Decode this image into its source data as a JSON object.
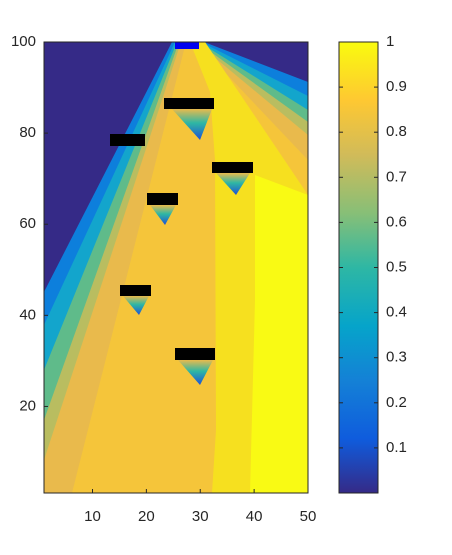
{
  "chart_data": {
    "type": "heatmap",
    "xlim": [
      1,
      50
    ],
    "xticks": [
      10,
      20,
      30,
      40,
      50
    ],
    "ylim": [
      1,
      100
    ],
    "yticks": [
      20,
      40,
      60,
      80,
      100
    ],
    "colorbar": {
      "clim": [
        0,
        1
      ],
      "ticks": [
        0.1,
        0.2,
        0.3,
        0.4,
        0.5,
        0.6,
        0.7,
        0.8,
        0.9,
        1
      ]
    }
  }
}
